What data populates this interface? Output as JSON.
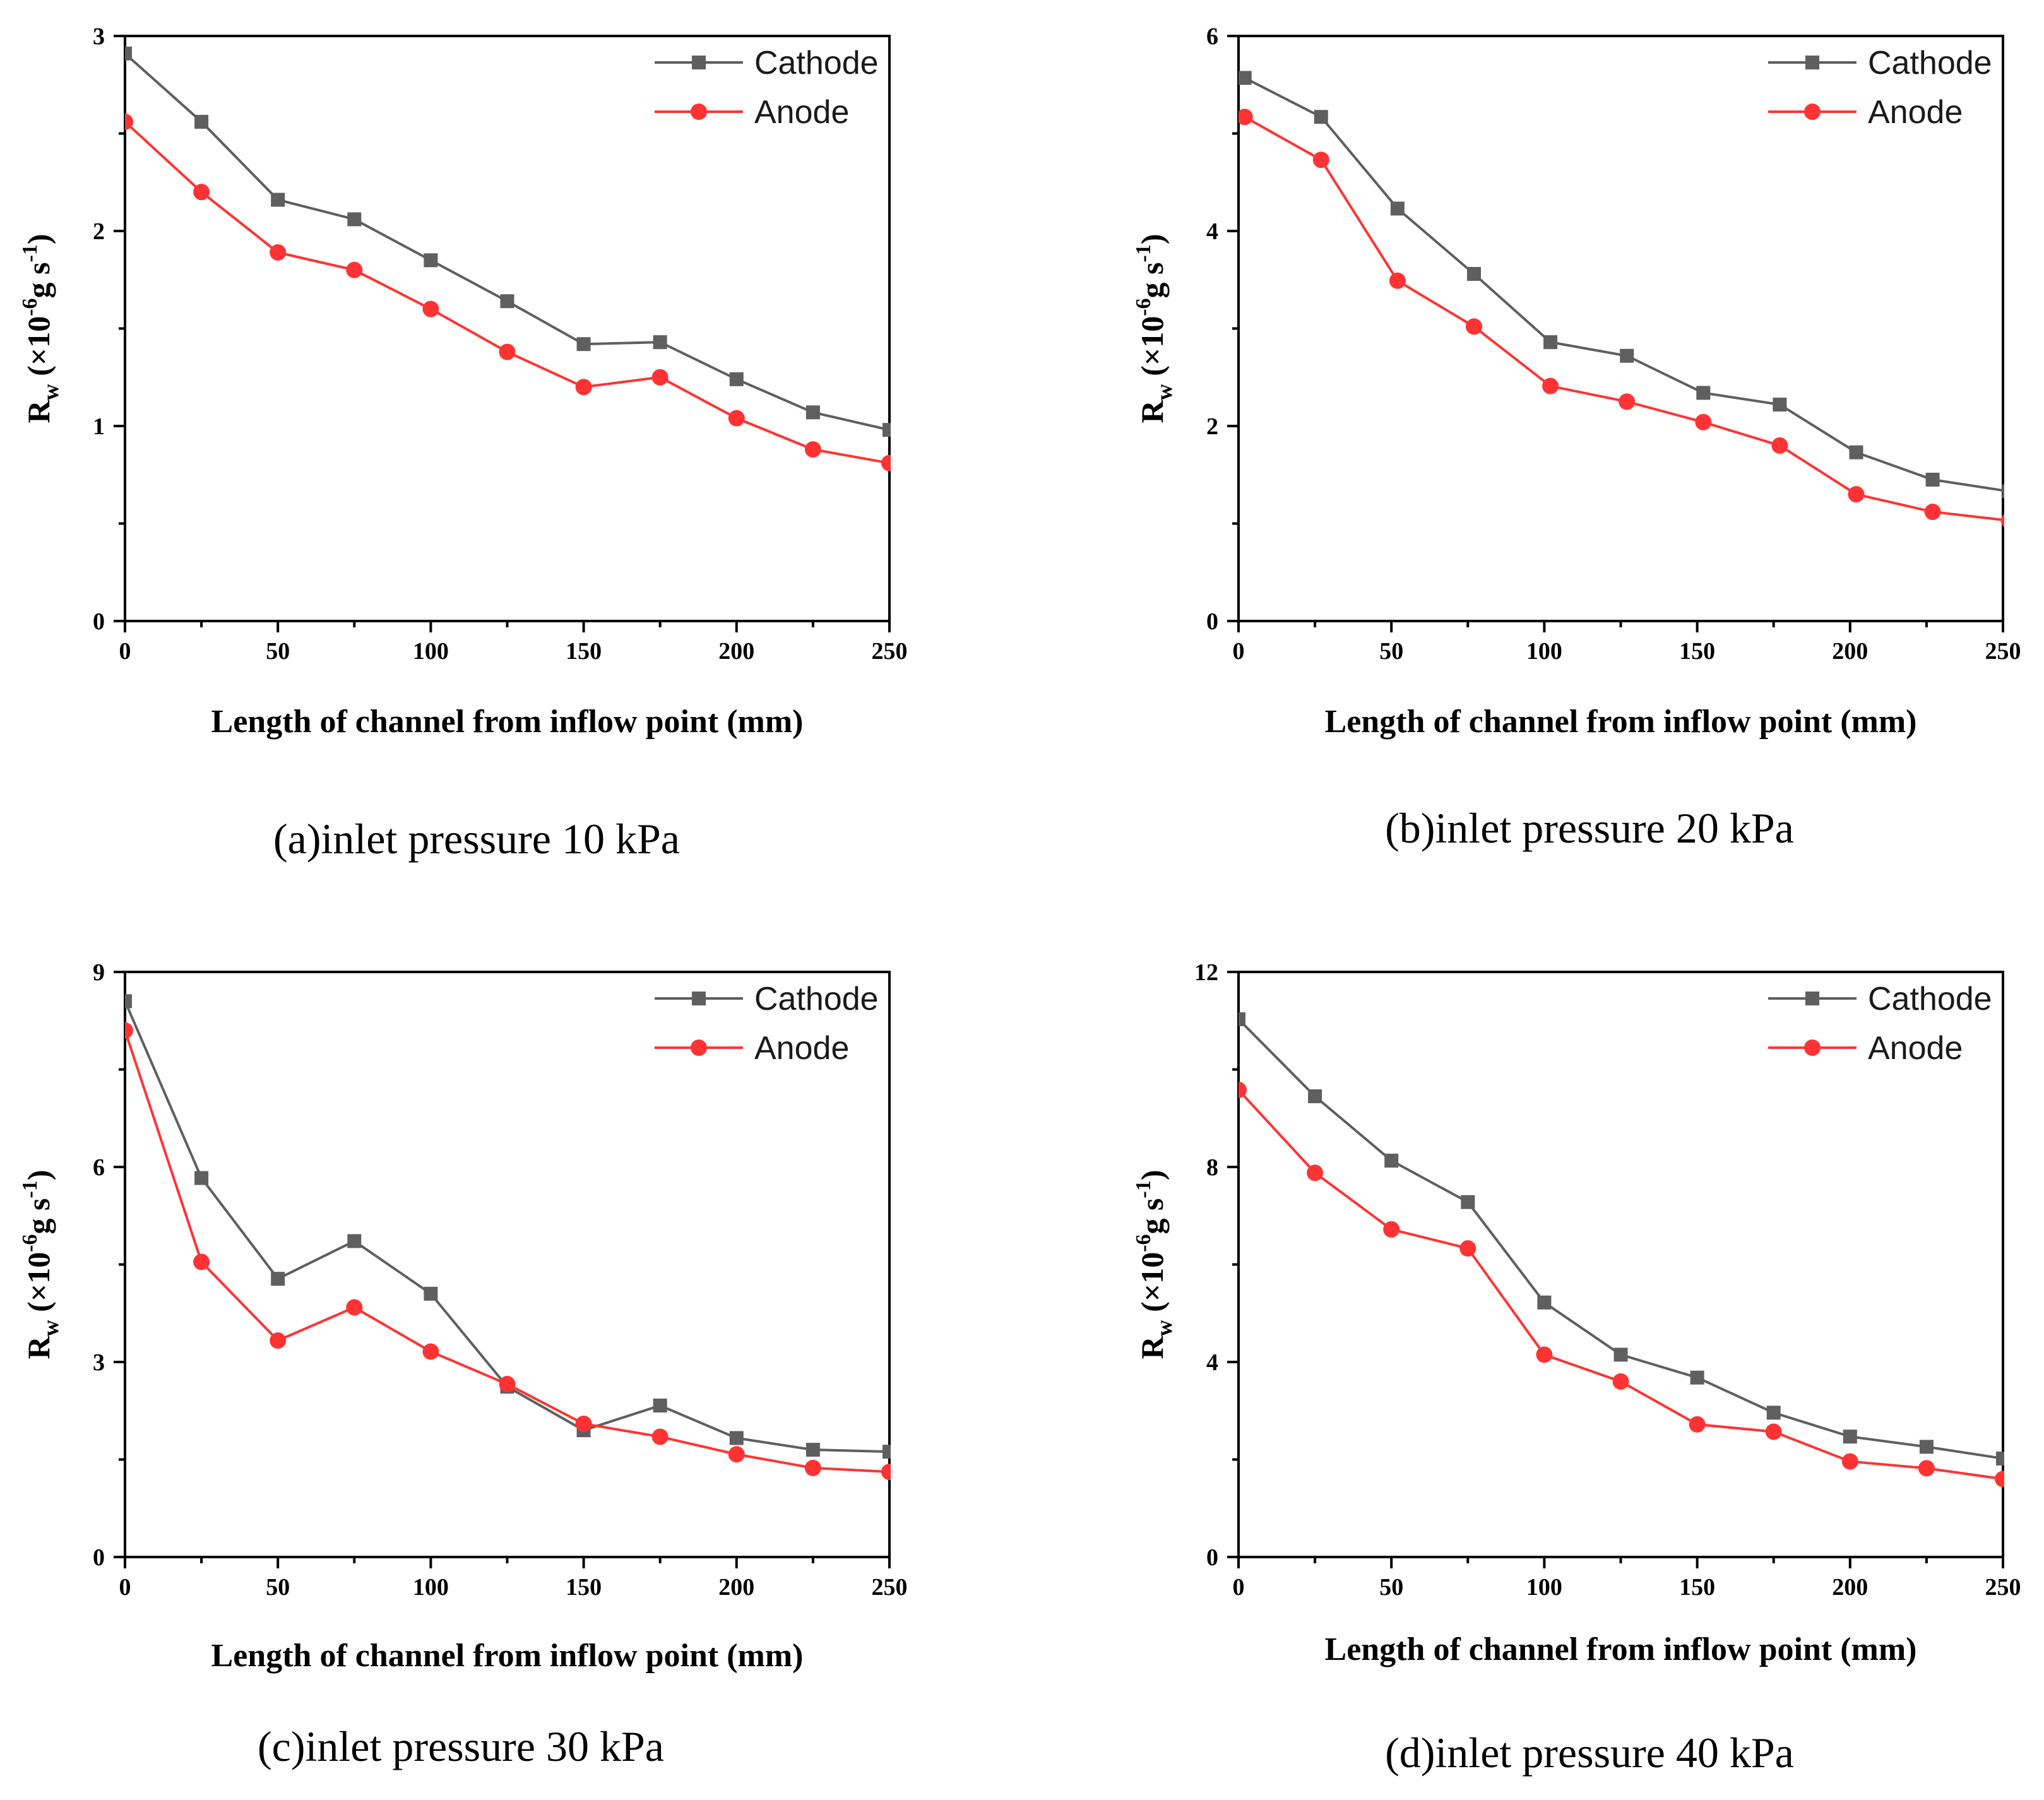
{
  "figure": {
    "panels": [
      {
        "caption": "(a)inlet pressure 10 kPa"
      },
      {
        "caption": "(b)inlet pressure 20 kPa"
      },
      {
        "caption": "(c)inlet pressure 30 kPa"
      },
      {
        "caption": "(d)inlet pressure 40 kPa"
      }
    ]
  },
  "colors": {
    "cathode": "#5f5f5f",
    "anode": "#ff3333",
    "axis": "#000000"
  },
  "chart_data": [
    {
      "type": "line",
      "title": "(a)inlet pressure 10 kPa",
      "xlabel": "Length of channel from inflow point (mm)",
      "ylabel": {
        "base": "R",
        "sub": "w",
        "unit_prefix": "(×10",
        "exp1": "-6",
        "unit_mid": "g  s",
        "exp2": "-1",
        "unit_suffix": ")"
      },
      "xlim": [
        0,
        250
      ],
      "ylim": [
        0,
        3
      ],
      "xticks": [
        "0",
        "50",
        "100",
        "150",
        "200",
        "250"
      ],
      "xtick_values": [
        0,
        50,
        100,
        150,
        200,
        250
      ],
      "yticks": [
        "0",
        "1",
        "2",
        "3"
      ],
      "ytick_values": [
        0,
        1,
        2,
        3
      ],
      "legend_position": "top-right",
      "series": [
        {
          "name": "Cathode",
          "marker": "square",
          "x": [
            0,
            25,
            50,
            75,
            100,
            125,
            150,
            175,
            200,
            225,
            250
          ],
          "values": [
            2.91,
            2.56,
            2.16,
            2.06,
            1.85,
            1.64,
            1.42,
            1.43,
            1.24,
            1.07,
            0.98
          ]
        },
        {
          "name": "Anode",
          "marker": "circle",
          "x": [
            0,
            25,
            50,
            75,
            100,
            125,
            150,
            175,
            200,
            225,
            250
          ],
          "values": [
            2.56,
            2.2,
            1.89,
            1.8,
            1.6,
            1.38,
            1.2,
            1.25,
            1.04,
            0.88,
            0.81
          ]
        }
      ]
    },
    {
      "type": "line",
      "title": "(b)inlet pressure 20 kPa",
      "xlabel": "Length of channel from inflow point (mm)",
      "ylabel": {
        "base": "R",
        "sub": "w",
        "unit_prefix": "(×10",
        "exp1": "-6",
        "unit_mid": "g  s",
        "exp2": "-1",
        "unit_suffix": ")"
      },
      "xlim": [
        0,
        250
      ],
      "ylim": [
        0,
        6
      ],
      "xticks": [
        "0",
        "50",
        "100",
        "150",
        "200",
        "250"
      ],
      "xtick_values": [
        0,
        50,
        100,
        150,
        200,
        250
      ],
      "yticks": [
        "0",
        "2",
        "4",
        "6"
      ],
      "ytick_values": [
        0,
        2,
        4,
        6
      ],
      "legend_position": "top-right",
      "series": [
        {
          "name": "Cathode",
          "marker": "square",
          "x": [
            2,
            27,
            52,
            77,
            102,
            127,
            152,
            177,
            202,
            227,
            252
          ],
          "values": [
            5.57,
            5.17,
            4.23,
            3.56,
            2.86,
            2.72,
            2.34,
            2.22,
            1.73,
            1.45,
            1.33
          ]
        },
        {
          "name": "Anode",
          "marker": "circle",
          "x": [
            2,
            27,
            52,
            77,
            102,
            127,
            152,
            177,
            202,
            227,
            252
          ],
          "values": [
            5.17,
            4.73,
            3.49,
            3.02,
            2.41,
            2.25,
            2.04,
            1.8,
            1.3,
            1.12,
            1.03
          ]
        }
      ]
    },
    {
      "type": "line",
      "title": "(c)inlet pressure 30 kPa",
      "xlabel": "Length of channel from inflow point (mm)",
      "ylabel": {
        "base": "R",
        "sub": "w",
        "unit_prefix": "(×10",
        "exp1": "-6",
        "unit_mid": "g  s",
        "exp2": "-1",
        "unit_suffix": ")"
      },
      "xlim": [
        0,
        250
      ],
      "ylim": [
        0,
        9
      ],
      "xticks": [
        "0",
        "50",
        "100",
        "150",
        "200",
        "250"
      ],
      "xtick_values": [
        0,
        50,
        100,
        150,
        200,
        250
      ],
      "yticks": [
        "0",
        "3",
        "6",
        "9"
      ],
      "ytick_values": [
        0,
        3,
        6,
        9
      ],
      "legend_position": "top-right",
      "series": [
        {
          "name": "Cathode",
          "marker": "square",
          "x": [
            0,
            25,
            50,
            75,
            100,
            125,
            150,
            175,
            200,
            225,
            250
          ],
          "values": [
            8.55,
            5.83,
            4.28,
            4.86,
            4.05,
            2.62,
            1.95,
            2.33,
            1.83,
            1.65,
            1.62
          ]
        },
        {
          "name": "Anode",
          "marker": "circle",
          "x": [
            0,
            25,
            50,
            75,
            100,
            125,
            150,
            175,
            200,
            225,
            250
          ],
          "values": [
            8.1,
            4.54,
            3.33,
            3.84,
            3.16,
            2.66,
            2.05,
            1.85,
            1.58,
            1.37,
            1.31
          ]
        }
      ]
    },
    {
      "type": "line",
      "title": "(d)inlet pressure 40 kPa",
      "xlabel": "Length of channel from inflow point (mm)",
      "ylabel": {
        "base": "R",
        "sub": "w",
        "unit_prefix": "(×10",
        "exp1": "-6",
        "unit_mid": "g  s",
        "exp2": "-1",
        "unit_suffix": ")"
      },
      "xlim": [
        0,
        250
      ],
      "ylim": [
        0,
        12
      ],
      "xticks": [
        "0",
        "50",
        "100",
        "150",
        "200",
        "250"
      ],
      "xtick_values": [
        0,
        50,
        100,
        150,
        200,
        250
      ],
      "yticks": [
        "0",
        "4",
        "8",
        "12"
      ],
      "ytick_values": [
        0,
        4,
        8,
        12
      ],
      "legend_position": "top-right",
      "series": [
        {
          "name": "Cathode",
          "marker": "square",
          "x": [
            0,
            25,
            50,
            75,
            100,
            125,
            150,
            175,
            200,
            225,
            250
          ],
          "values": [
            11.03,
            9.45,
            8.13,
            7.28,
            5.22,
            4.15,
            3.68,
            2.96,
            2.47,
            2.26,
            2.02
          ]
        },
        {
          "name": "Anode",
          "marker": "circle",
          "x": [
            0,
            25,
            50,
            75,
            100,
            125,
            150,
            175,
            200,
            225,
            250
          ],
          "values": [
            9.58,
            7.88,
            6.72,
            6.33,
            4.15,
            3.6,
            2.72,
            2.57,
            1.96,
            1.82,
            1.6
          ]
        }
      ]
    }
  ]
}
